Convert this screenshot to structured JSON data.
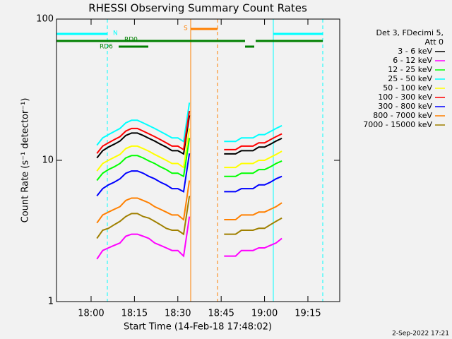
{
  "chart_data": {
    "type": "line",
    "title": "RHESSI Observing Summary Count Rates",
    "xlabel": "Start Time (14-Feb-18 17:48:02)",
    "ylabel": "Count Rate (s⁻¹ detector⁻¹)",
    "legend_title": [
      "Det 3, FDecimi 5,",
      "Att 0"
    ],
    "timestamp": "2-Sep-2022 17:21",
    "annotations": {
      "n": "N",
      "s": "S",
      "rd0": "RD0",
      "rd6": "RD6"
    },
    "log_y": true,
    "ylim": [
      1,
      100
    ],
    "yticks": [
      1,
      10,
      100
    ],
    "xlim": [
      "17:48:02",
      "19:26"
    ],
    "xticks": [
      "18:00",
      "18:15",
      "18:30",
      "18:45",
      "19:00",
      "19:15"
    ],
    "x": [
      "18:02",
      "18:04",
      "18:06",
      "18:08",
      "18:10",
      "18:12",
      "18:14",
      "18:16",
      "18:18",
      "18:20",
      "18:22",
      "18:24",
      "18:26",
      "18:28",
      "18:30",
      "18:32",
      "18:34",
      "18:40",
      "18:46",
      "18:48",
      "18:50",
      "18:52",
      "18:54",
      "18:56",
      "18:58",
      "19:00",
      "19:02",
      "19:04",
      "19:06"
    ],
    "series": [
      {
        "name": "3 - 6 keV",
        "color": "#000000",
        "values": [
          10.4,
          11.7,
          12.4,
          13,
          13.7,
          15,
          15.6,
          15.6,
          15,
          14.3,
          13.7,
          13,
          12.4,
          11.7,
          11.7,
          11.1,
          20.8,
          null,
          11.1,
          11.1,
          11.1,
          11.7,
          11.7,
          11.7,
          12.4,
          12.4,
          13,
          13.7,
          14.3
        ]
      },
      {
        "name": "6 - 12 keV",
        "color": "#ff00ff",
        "values": [
          2,
          2.3,
          2.4,
          2.5,
          2.6,
          2.9,
          3,
          3,
          2.9,
          2.8,
          2.6,
          2.5,
          2.4,
          2.3,
          2.3,
          2.1,
          4,
          null,
          2.1,
          2.1,
          2.1,
          2.3,
          2.3,
          2.3,
          2.4,
          2.4,
          2.5,
          2.6,
          2.8
        ]
      },
      {
        "name": "12 - 25 keV",
        "color": "#00ff00",
        "values": [
          7.2,
          8.1,
          8.6,
          9,
          9.5,
          10.4,
          10.8,
          10.8,
          10.4,
          9.9,
          9.5,
          9,
          8.6,
          8.1,
          8.1,
          7.7,
          14.4,
          null,
          7.7,
          7.7,
          7.7,
          8.1,
          8.1,
          8.1,
          8.6,
          8.6,
          9,
          9.5,
          9.9
        ]
      },
      {
        "name": "25 - 50 keV",
        "color": "#00ffff",
        "values": [
          12.8,
          14.4,
          15.2,
          16,
          16.8,
          18.4,
          19.2,
          19.2,
          18.4,
          17.6,
          16.8,
          16,
          15.2,
          14.4,
          14.4,
          13.6,
          25.6,
          null,
          13.6,
          13.6,
          13.6,
          14.4,
          14.4,
          14.4,
          15.2,
          15.2,
          16,
          16.8,
          17.6
        ]
      },
      {
        "name": "50 - 100 keV",
        "color": "#ffff00",
        "values": [
          8.4,
          9.5,
          10,
          10.5,
          11,
          12.1,
          12.6,
          12.6,
          12.1,
          11.6,
          11,
          10.5,
          10,
          9.5,
          9.5,
          8.9,
          16.8,
          null,
          8.9,
          8.9,
          8.9,
          9.5,
          9.5,
          9.5,
          10,
          10,
          10.5,
          11,
          11.6
        ]
      },
      {
        "name": "100 - 300 keV",
        "color": "#ff0000",
        "values": [
          11.2,
          12.6,
          13.3,
          14,
          14.7,
          16.1,
          16.8,
          16.8,
          16.1,
          15.4,
          14.7,
          14,
          13.3,
          12.6,
          12.6,
          11.9,
          22.4,
          null,
          11.9,
          11.9,
          11.9,
          12.6,
          12.6,
          12.6,
          13.3,
          13.3,
          14,
          14.7,
          15.4
        ]
      },
      {
        "name": "300 - 800 keV",
        "color": "#0000ff",
        "values": [
          5.6,
          6.3,
          6.7,
          7,
          7.4,
          8.1,
          8.4,
          8.4,
          8.1,
          7.7,
          7.4,
          7,
          6.7,
          6.3,
          6.3,
          6,
          11.2,
          null,
          6,
          6,
          6,
          6.3,
          6.3,
          6.3,
          6.7,
          6.7,
          7,
          7.4,
          7.7
        ]
      },
      {
        "name": "800 - 7000 keV",
        "color": "#ff8000",
        "values": [
          3.6,
          4.1,
          4.3,
          4.5,
          4.7,
          5.2,
          5.4,
          5.4,
          5.2,
          5,
          4.7,
          4.5,
          4.3,
          4.1,
          4.1,
          3.8,
          7.2,
          null,
          3.8,
          3.8,
          3.8,
          4.1,
          4.1,
          4.1,
          4.3,
          4.3,
          4.5,
          4.7,
          5
        ]
      },
      {
        "name": "7000 - 15000 keV",
        "color": "#a08000",
        "values": [
          2.8,
          3.2,
          3.3,
          3.5,
          3.7,
          4,
          4.2,
          4.2,
          4,
          3.9,
          3.7,
          3.5,
          3.3,
          3.2,
          3.2,
          3,
          5.6,
          null,
          3,
          3,
          3,
          3.2,
          3.2,
          3.2,
          3.3,
          3.3,
          3.5,
          3.7,
          3.9
        ]
      }
    ]
  }
}
